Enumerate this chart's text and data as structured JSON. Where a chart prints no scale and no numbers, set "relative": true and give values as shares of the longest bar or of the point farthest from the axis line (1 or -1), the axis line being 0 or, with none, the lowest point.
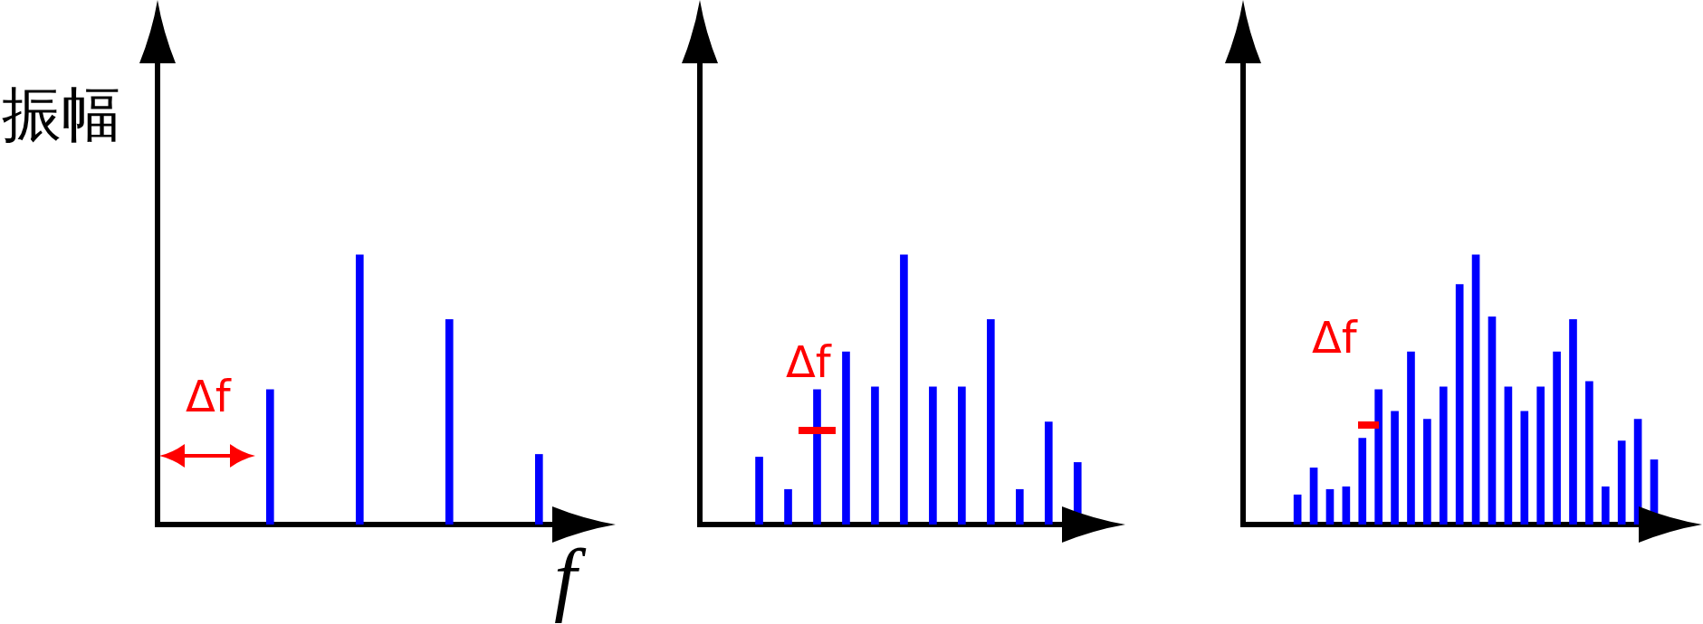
{
  "chart_data": [
    {
      "type": "bar",
      "ylabel": "振幅",
      "xlabel": "f",
      "categories": [
        null,
        null,
        null,
        null
      ],
      "values": [
        0.5,
        1,
        0.76,
        0.26
      ],
      "color": "#0000ff",
      "relative": true,
      "annotations": [
        "Δf"
      ]
    },
    {
      "type": "bar",
      "categories": [
        null,
        null,
        null,
        null,
        null,
        null,
        null,
        null,
        null,
        null,
        null,
        null
      ],
      "values": [
        0.25,
        0.13,
        0.5,
        0.64,
        0.51,
        1,
        0.51,
        0.51,
        0.76,
        0.13,
        0.38,
        0.23
      ],
      "color": "#0000ff",
      "relative": true,
      "annotations": [
        "Δf"
      ]
    },
    {
      "type": "bar",
      "categories": [
        null,
        null,
        null,
        null,
        null,
        null,
        null,
        null,
        null,
        null,
        null,
        null,
        null,
        null,
        null,
        null,
        null,
        null,
        null,
        null,
        null,
        null,
        null
      ],
      "values": [
        0.11,
        0.21,
        0.13,
        0.14,
        0.32,
        0.5,
        0.42,
        0.64,
        0.39,
        0.51,
        0.89,
        1,
        0.77,
        0.51,
        0.42,
        0.51,
        0.64,
        0.76,
        0.53,
        0.14,
        0.31,
        0.39,
        0.24
      ],
      "color": "#0000ff",
      "relative": true,
      "annotations": [
        "Δf"
      ]
    }
  ]
}
